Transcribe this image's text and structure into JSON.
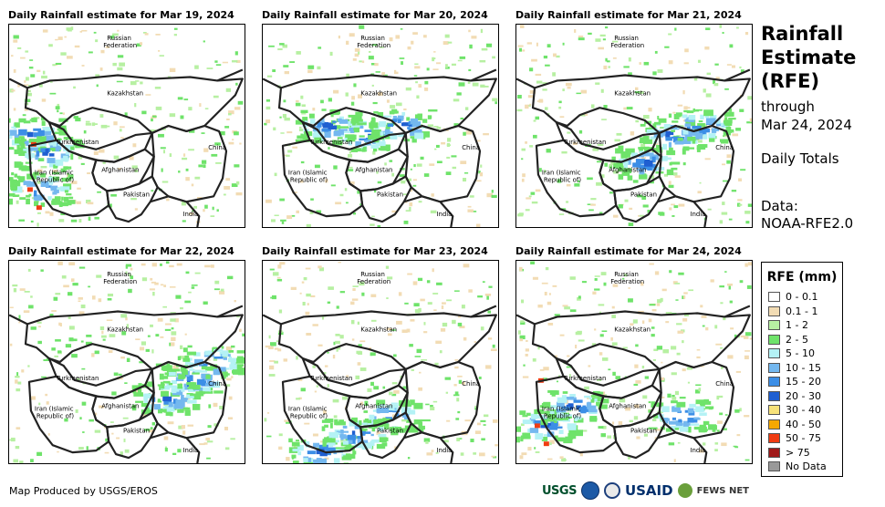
{
  "panels": [
    {
      "title": "Daily Rainfall estimate for Mar 19, 2024",
      "heavy": "west"
    },
    {
      "title": "Daily Rainfall estimate for Mar 20, 2024",
      "heavy": "center"
    },
    {
      "title": "Daily Rainfall estimate for Mar 21, 2024",
      "heavy": "east"
    },
    {
      "title": "Daily Rainfall estimate for Mar 22, 2024",
      "heavy": "southeast"
    },
    {
      "title": "Daily Rainfall estimate for Mar 23, 2024",
      "heavy": "south"
    },
    {
      "title": "Daily Rainfall estimate for Mar 24, 2024",
      "heavy": "southwest"
    }
  ],
  "map_labels": {
    "russia": "Russian",
    "russia2": "Federation",
    "kazakhstan": "Kazakhstan",
    "turkmenistan": "Turkmenistan",
    "iran": "Iran  (Islamic",
    "iran2": "Republic of)",
    "afghanistan": "Afghanistan",
    "pakistan": "Pakistan",
    "china": "China",
    "india": "India"
  },
  "sidebar": {
    "title_line1": "Rainfall",
    "title_line2": "Estimate",
    "title_line3": "(RFE)",
    "through": "through",
    "through_date": "Mar 24, 2024",
    "totals": "Daily Totals",
    "data_label": "Data:",
    "data_source": "NOAA-RFE2.0"
  },
  "legend": {
    "title": "RFE (mm)",
    "items": [
      {
        "label": "0 - 0.1",
        "color": "#ffffff"
      },
      {
        "label": "0.1 - 1",
        "color": "#f2dcb4"
      },
      {
        "label": "1 - 2",
        "color": "#b7f0a2"
      },
      {
        "label": "2 - 5",
        "color": "#6fe36a"
      },
      {
        "label": "5 - 10",
        "color": "#b4f2f5"
      },
      {
        "label": "10 - 15",
        "color": "#74b8ef"
      },
      {
        "label": "15 - 20",
        "color": "#3c8ee6"
      },
      {
        "label": "20 - 30",
        "color": "#1f5fd1"
      },
      {
        "label": "30 - 40",
        "color": "#f7e27a"
      },
      {
        "label": "40 - 50",
        "color": "#f5a800"
      },
      {
        "label": "50 - 75",
        "color": "#f03c12"
      },
      {
        "label": "> 75",
        "color": "#a01a1a"
      },
      {
        "label": "No Data",
        "color": "#999999"
      }
    ]
  },
  "footer": {
    "credit": "Map Produced by USGS/EROS"
  },
  "logos": {
    "usgs": "USGS",
    "usaid": "USAID",
    "fews": "FEWS NET"
  }
}
